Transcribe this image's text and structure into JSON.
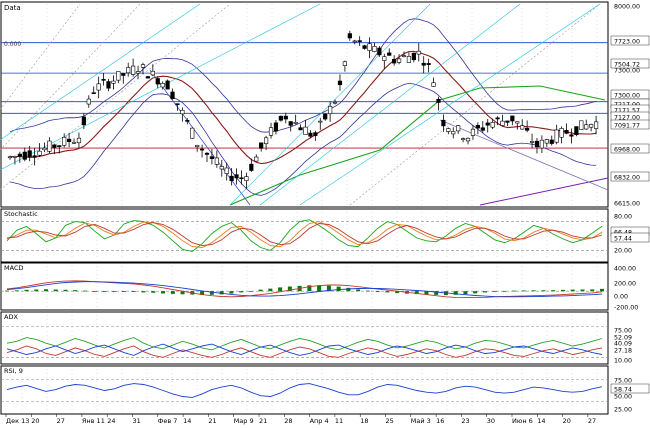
{
  "chart_data": [
    {
      "type": "candlestick",
      "title": "Data",
      "y_ticks": [
        "8000.00",
        "7723.00",
        "7504.72",
        "7300.00",
        "7300.00",
        "7217.00",
        "7171.57",
        "7127.00",
        "7091.77",
        "6968.00",
        "6832.00",
        "6615.00"
      ],
      "series_summary": {
        "open_level": 6950,
        "high_level": 7600,
        "last_value": 7217
      },
      "annotation": "0.000",
      "lines": [
        {
          "name": "moving average (dark red)",
          "color": "#8b1a1a"
        },
        {
          "name": "moving average (green)",
          "color": "#1aa51a"
        },
        {
          "name": "bollinger bands",
          "color": "#333399"
        },
        {
          "name": "trend line (purple)",
          "color": "#7a1fa8"
        },
        {
          "name": "trend line (cyan)",
          "color": "#22c2e0"
        }
      ],
      "horizontal_levels": [
        {
          "value": 7723.0,
          "color": "#1a3fd1"
        },
        {
          "value": 7504.72,
          "color": "#1a3fd1"
        },
        {
          "value": 7300.0,
          "color": "#1a3fd1"
        },
        {
          "value": 7217.0,
          "color": "#1a3fd1"
        },
        {
          "value": 6968.0,
          "color": "#c8102e"
        }
      ]
    },
    {
      "type": "line",
      "title": "Stochastic",
      "y_ticks": [
        "80.00",
        "66.48",
        "57.44",
        "20.00"
      ],
      "ylim": [
        0,
        100
      ],
      "series": [
        {
          "name": "%K",
          "color": "#1aa51a",
          "values": [
            40,
            62,
            70,
            55,
            38,
            46,
            72,
            80,
            78,
            60,
            44,
            52,
            75,
            82,
            80,
            72,
            58,
            40,
            22,
            18,
            34,
            55,
            70,
            78,
            62,
            40,
            26,
            20,
            36,
            62,
            80,
            84,
            72,
            58,
            42,
            30,
            28,
            46,
            66,
            80,
            74,
            60,
            46,
            40,
            38,
            50,
            66,
            76,
            70,
            56,
            42,
            36,
            44,
            58,
            72,
            66,
            54,
            44,
            36,
            42,
            56,
            70
          ]
        },
        {
          "name": "%D",
          "color": "#e67e22",
          "values": [
            44,
            52,
            62,
            62,
            54,
            46,
            52,
            66,
            77,
            72,
            60,
            52,
            58,
            70,
            79,
            78,
            70,
            56,
            40,
            28,
            26,
            36,
            52,
            68,
            70,
            58,
            42,
            30,
            28,
            40,
            60,
            76,
            80,
            70,
            56,
            42,
            32,
            36,
            48,
            64,
            74,
            72,
            60,
            50,
            42,
            44,
            52,
            64,
            70,
            66,
            56,
            44,
            40,
            46,
            58,
            66,
            62,
            54,
            46,
            42,
            46,
            58
          ]
        },
        {
          "name": "%D slow",
          "color": "#c0392b",
          "values": [
            46,
            48,
            56,
            60,
            58,
            52,
            50,
            58,
            70,
            74,
            66,
            56,
            56,
            64,
            74,
            78,
            74,
            64,
            50,
            36,
            30,
            32,
            42,
            58,
            66,
            64,
            52,
            38,
            32,
            34,
            48,
            66,
            76,
            74,
            64,
            50,
            38,
            34,
            40,
            54,
            66,
            72,
            66,
            56,
            48,
            44,
            48,
            58,
            66,
            66,
            60,
            50,
            44,
            44,
            52,
            60,
            62,
            58,
            50,
            46,
            46,
            52
          ]
        }
      ]
    },
    {
      "type": "bar_line",
      "title": "MACD",
      "y_ticks": [
        "400.00",
        "200.00",
        "0.00",
        "-200.00"
      ],
      "ylim": [
        -300,
        450
      ],
      "series": [
        {
          "name": "MACD",
          "color": "#c0392b",
          "values": [
            40,
            60,
            90,
            120,
            150,
            170,
            180,
            185,
            180,
            170,
            160,
            150,
            140,
            130,
            110,
            90,
            60,
            30,
            0,
            -30,
            -60,
            -80,
            -95,
            -100,
            -95,
            -80,
            -60,
            -40,
            -10,
            20,
            50,
            80,
            100,
            110,
            110,
            100,
            80,
            60,
            40,
            20,
            0,
            -20,
            -40,
            -60,
            -80,
            -100,
            -110,
            -115,
            -115,
            -110,
            -100,
            -95,
            -90,
            -85,
            -80,
            -75,
            -70,
            -60,
            -50,
            -40,
            -30,
            -10
          ]
        },
        {
          "name": "Signal",
          "color": "#1a3fd1",
          "values": [
            30,
            45,
            65,
            90,
            115,
            140,
            155,
            165,
            170,
            170,
            165,
            160,
            152,
            144,
            132,
            118,
            100,
            78,
            55,
            30,
            6,
            -16,
            -38,
            -58,
            -74,
            -84,
            -88,
            -86,
            -78,
            -64,
            -46,
            -26,
            -6,
            12,
            28,
            40,
            48,
            50,
            48,
            42,
            34,
            24,
            12,
            0,
            -14,
            -30,
            -46,
            -62,
            -76,
            -88,
            -96,
            -100,
            -100,
            -98,
            -96,
            -92,
            -88,
            -84,
            -78,
            -70,
            -62,
            -52
          ]
        },
        {
          "name": "Histogram",
          "color": "#0a7a0a",
          "values": [
            10,
            15,
            25,
            30,
            35,
            30,
            25,
            20,
            10,
            0,
            -5,
            -10,
            -12,
            -14,
            -22,
            -28,
            -40,
            -48,
            -55,
            -60,
            -66,
            -64,
            -57,
            -42,
            -21,
            4,
            28,
            46,
            68,
            84,
            96,
            106,
            106,
            98,
            82,
            60,
            32,
            10,
            -8,
            -22,
            -34,
            -44,
            -52,
            -60,
            -66,
            -70,
            -64,
            -53,
            -39,
            -22,
            -4,
            5,
            10,
            13,
            16,
            17,
            18,
            24,
            28,
            30,
            32,
            42
          ]
        }
      ]
    },
    {
      "type": "line",
      "title": "ADX",
      "y_ticks": [
        "75.00",
        "52.09",
        "40.09",
        "27.18",
        "10.00"
      ],
      "ylim": [
        0,
        100
      ],
      "series": [
        {
          "name": "ADX",
          "color": "#2aa02a",
          "values": [
            40,
            44,
            52,
            48,
            40,
            34,
            42,
            50,
            44,
            36,
            30,
            38,
            46,
            52,
            40,
            32,
            28,
            36,
            44,
            38,
            30,
            26,
            34,
            42,
            48,
            40,
            32,
            28,
            36,
            44,
            50,
            46,
            38,
            30,
            26,
            34,
            42,
            48,
            44,
            36,
            30,
            34,
            40,
            46,
            42,
            34,
            28,
            32,
            40,
            46,
            44,
            38,
            32,
            30,
            36,
            42,
            46,
            40,
            34,
            38,
            44,
            50
          ]
        },
        {
          "name": "+DI",
          "color": "#c0392b",
          "values": [
            20,
            26,
            34,
            28,
            18,
            14,
            22,
            30,
            24,
            16,
            12,
            20,
            28,
            34,
            22,
            14,
            10,
            18,
            26,
            20,
            14,
            10,
            16,
            24,
            30,
            22,
            14,
            10,
            18,
            26,
            32,
            28,
            20,
            12,
            10,
            18,
            24,
            30,
            26,
            18,
            12,
            16,
            22,
            28,
            24,
            16,
            10,
            14,
            22,
            28,
            26,
            20,
            14,
            12,
            18,
            24,
            28,
            22,
            16,
            20,
            26,
            30
          ]
        },
        {
          "name": "-DI",
          "color": "#1a3fd1",
          "values": [
            28,
            22,
            16,
            20,
            28,
            34,
            26,
            18,
            24,
            32,
            36,
            28,
            20,
            14,
            24,
            32,
            38,
            30,
            22,
            28,
            34,
            38,
            30,
            22,
            16,
            24,
            32,
            36,
            28,
            20,
            14,
            18,
            26,
            34,
            36,
            28,
            22,
            16,
            20,
            28,
            34,
            30,
            24,
            18,
            22,
            30,
            36,
            32,
            24,
            18,
            20,
            26,
            32,
            34,
            28,
            22,
            18,
            24,
            30,
            26,
            20,
            16
          ]
        }
      ]
    },
    {
      "type": "line",
      "title": "RSI, 9",
      "y_ticks": [
        "75.00",
        "58.74",
        "50.00",
        "25.00"
      ],
      "ylim": [
        0,
        100
      ],
      "series": [
        {
          "name": "RSI",
          "color": "#1a3fd1",
          "values": [
            52,
            58,
            62,
            55,
            48,
            52,
            60,
            64,
            62,
            56,
            50,
            54,
            62,
            66,
            64,
            58,
            50,
            42,
            36,
            34,
            42,
            52,
            58,
            62,
            56,
            46,
            38,
            36,
            44,
            56,
            64,
            66,
            60,
            54,
            46,
            40,
            40,
            48,
            58,
            64,
            62,
            56,
            50,
            46,
            44,
            48,
            56,
            60,
            58,
            52,
            46,
            44,
            46,
            52,
            58,
            56,
            52,
            48,
            46,
            48,
            54,
            58.74
          ]
        }
      ]
    }
  ],
  "x_axis": {
    "labels": [
      "Дек 13",
      "20",
      "27",
      "Янв 11",
      "24",
      "31",
      "Фев 7",
      "14",
      "21",
      "Мар 9",
      "21",
      "28",
      "Апр 4",
      "11",
      "18",
      "25",
      "Май 3",
      "16",
      "23",
      "30",
      "Июн 6",
      "14",
      "20",
      "27"
    ]
  },
  "colors": {
    "background": "#ffffff",
    "grid": "#c8c8c8",
    "pane_border": "#000000",
    "up_candle": "#ffffff",
    "down_candle": "#000000"
  }
}
